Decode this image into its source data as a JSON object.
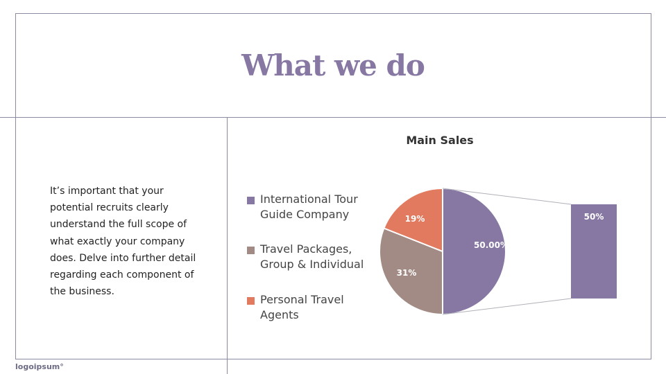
{
  "slide": {
    "title": "What we do",
    "body": "It’s important that your potential recruits clearly understand the full scope of what exactly your company does. Delve into further detail regarding each component of the business.",
    "logo": "logoipsum°"
  },
  "colors": {
    "accent": "#8677a3",
    "slice_international": "#8677a3",
    "slice_packages": "#a38b85",
    "slice_personal": "#e27a5f"
  },
  "legend": [
    {
      "label": "International Tour Guide Company",
      "color": "#8677a3"
    },
    {
      "label": "Travel Packages, Group & Individual",
      "color": "#a38b85"
    },
    {
      "label": "Personal Travel Agents",
      "color": "#e27a5f"
    }
  ],
  "chart_data": {
    "type": "pie",
    "title": "Main Sales",
    "slices": [
      {
        "name": "International Tour Guide Company",
        "value": 50,
        "label": "50.00%",
        "color": "#8677a3"
      },
      {
        "name": "Travel Packages, Group & Individual",
        "value": 31,
        "label": "31%",
        "color": "#a38b85"
      },
      {
        "name": "Personal Travel Agents",
        "value": 19,
        "label": "19%",
        "color": "#e27a5f"
      }
    ],
    "breakout_bar": {
      "value": 50,
      "label": "50%",
      "color": "#8677a3"
    }
  }
}
